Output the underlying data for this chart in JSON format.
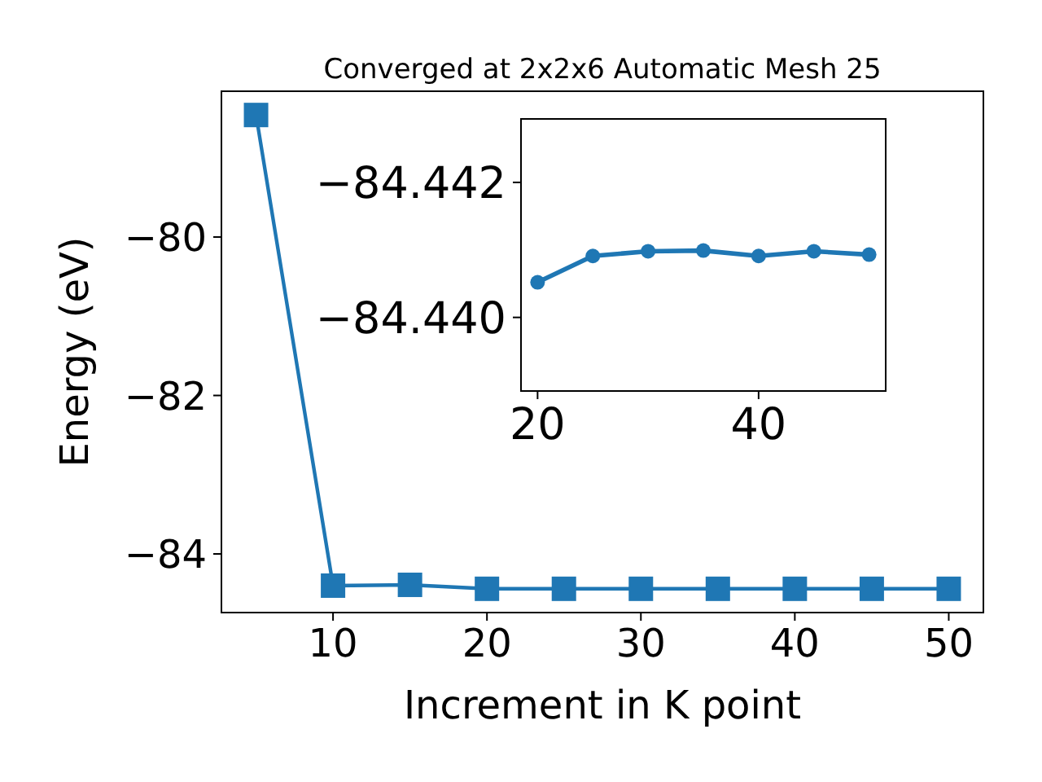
{
  "chart_data": [
    {
      "type": "line",
      "title": "Converged at 2x2x6 Automatic Mesh 25",
      "xlabel": "Increment in K point",
      "ylabel": "Energy (eV)",
      "x": [
        5,
        10,
        15,
        20,
        25,
        30,
        35,
        40,
        45,
        50
      ],
      "series": [
        {
          "color": "#1f77b4",
          "values": [
            -78.46,
            -84.4,
            -84.39,
            -84.44,
            -84.44,
            -84.44,
            -84.44,
            -84.44,
            -84.44,
            -84.44
          ]
        }
      ],
      "xlim": [
        2.75,
        52.25
      ],
      "ylim": [
        -84.74,
        -78.16
      ],
      "xticks": [
        10,
        20,
        30,
        40,
        50
      ],
      "yticks": [
        -84,
        -82,
        -80
      ],
      "marker": "square",
      "grid": false
    },
    {
      "type": "line",
      "x": [
        20,
        25,
        30,
        35,
        40,
        45,
        50
      ],
      "series": [
        {
          "color": "#1f77b4",
          "values": [
            -84.44052,
            -84.44091,
            -84.44098,
            -84.44099,
            -84.44091,
            -84.44098,
            -84.44093
          ]
        }
      ],
      "xlim": [
        18.5,
        51.5
      ],
      "ylim": [
        -84.43891,
        -84.44294
      ],
      "xticks": [
        20,
        40
      ],
      "yticks": [
        -84.442,
        {
          "value": -84.44,
          "label": "−84.440"
        }
      ],
      "marker": "circle",
      "grid": false
    }
  ]
}
